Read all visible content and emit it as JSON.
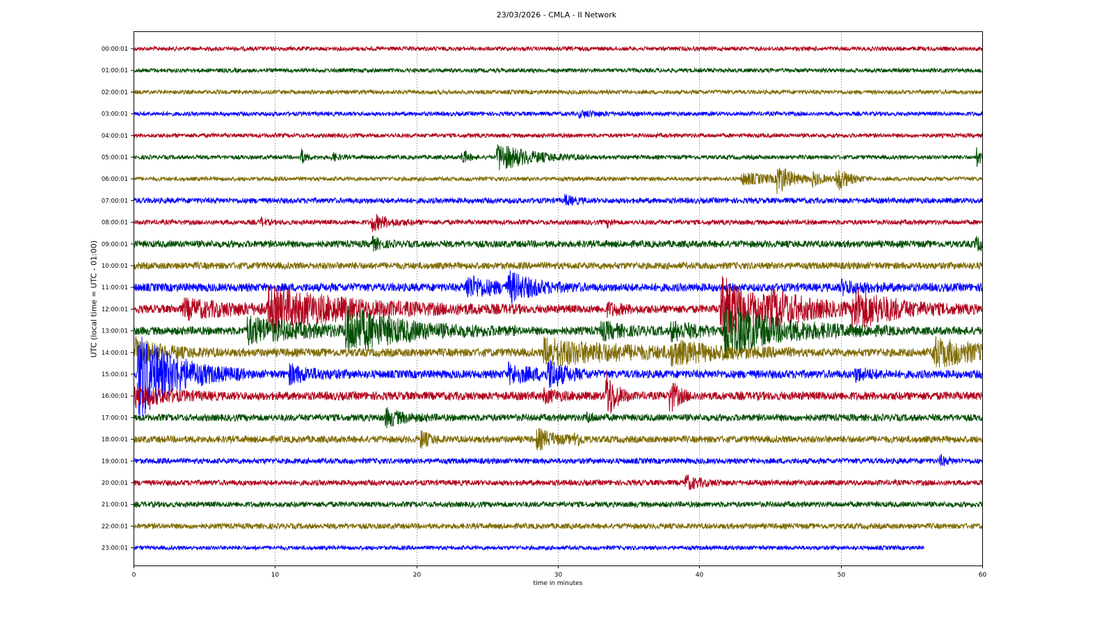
{
  "chart_data": {
    "type": "line",
    "title": "23/03/2026 - CMLA - II Network",
    "xlabel": "time in minutes",
    "ylabel": "UTC (local time = UTC - 01:00)",
    "xlim": [
      0,
      60
    ],
    "xticks": [
      0,
      10,
      20,
      30,
      40,
      50,
      60
    ],
    "grid": "vertical dotted",
    "colors": [
      "#b0001a",
      "#004d00",
      "#7f6a00",
      "#0000ff"
    ],
    "series": [
      {
        "label": "00:00:01",
        "color": "#b0001a",
        "amp": 3,
        "end": 60,
        "events": []
      },
      {
        "label": "01:00:01",
        "color": "#004d00",
        "amp": 3,
        "end": 60,
        "events": []
      },
      {
        "label": "02:00:01",
        "color": "#7f6a00",
        "amp": 3,
        "end": 60,
        "events": []
      },
      {
        "label": "03:00:01",
        "color": "#0000ff",
        "amp": 3,
        "end": 60,
        "events": [
          [
            31.5,
            4,
            1.5
          ]
        ]
      },
      {
        "label": "04:00:01",
        "color": "#b0001a",
        "amp": 3,
        "end": 60,
        "events": []
      },
      {
        "label": "05:00:01",
        "color": "#004d00",
        "amp": 3,
        "end": 60,
        "events": [
          [
            11.8,
            13,
            0.3
          ],
          [
            14,
            7,
            0.4
          ],
          [
            23.2,
            12,
            0.4
          ],
          [
            25.7,
            20,
            2.2
          ],
          [
            59.6,
            12,
            0.5
          ]
        ]
      },
      {
        "label": "06:00:01",
        "color": "#7f6a00",
        "amp": 3,
        "end": 60,
        "events": [
          [
            43,
            8,
            2.5
          ],
          [
            45.5,
            22,
            0.8
          ],
          [
            48,
            10,
            0.6
          ],
          [
            49.7,
            18,
            0.8
          ]
        ]
      },
      {
        "label": "07:00:01",
        "color": "#0000ff",
        "amp": 4,
        "end": 60,
        "events": [
          [
            30.5,
            7,
            0.6
          ]
        ]
      },
      {
        "label": "08:00:01",
        "color": "#b0001a",
        "amp": 3.5,
        "end": 60,
        "events": [
          [
            9,
            6,
            0.3
          ],
          [
            16.8,
            12,
            1.2
          ],
          [
            33.5,
            6,
            0.3
          ]
        ]
      },
      {
        "label": "09:00:01",
        "color": "#004d00",
        "amp": 5,
        "end": 60,
        "events": [
          [
            16.8,
            9,
            0.6
          ],
          [
            59.5,
            8,
            0.8
          ]
        ]
      },
      {
        "label": "10:00:01",
        "color": "#7f6a00",
        "amp": 5,
        "end": 60,
        "events": []
      },
      {
        "label": "11:00:01",
        "color": "#0000ff",
        "amp": 6,
        "end": 60,
        "events": [
          [
            23.5,
            16,
            1.8
          ],
          [
            26.5,
            18,
            1.8
          ],
          [
            50,
            8,
            1.5
          ]
        ]
      },
      {
        "label": "12:00:01",
        "color": "#b0001a",
        "amp": 6,
        "end": 60,
        "events": [
          [
            3.5,
            12,
            4
          ],
          [
            9.5,
            28,
            6
          ],
          [
            33.5,
            8,
            1
          ],
          [
            41.5,
            45,
            3
          ],
          [
            45,
            14,
            3
          ],
          [
            50.8,
            28,
            3
          ]
        ]
      },
      {
        "label": "13:00:01",
        "color": "#004d00",
        "amp": 6,
        "end": 60,
        "events": [
          [
            8,
            18,
            4
          ],
          [
            15,
            30,
            4
          ],
          [
            33,
            12,
            1.5
          ],
          [
            38,
            12,
            2
          ],
          [
            41.8,
            35,
            4
          ]
        ]
      },
      {
        "label": "14:00:01",
        "color": "#7f6a00",
        "amp": 6,
        "end": 60,
        "events": [
          [
            0.1,
            18,
            2
          ],
          [
            29,
            18,
            6
          ],
          [
            38,
            12,
            3
          ],
          [
            56.5,
            20,
            3.5
          ]
        ]
      },
      {
        "label": "15:00:01",
        "color": "#0000ff",
        "amp": 6,
        "end": 60,
        "events": [
          [
            0.3,
            65,
            2.5
          ],
          [
            11,
            12,
            1.5
          ],
          [
            26.5,
            12,
            2
          ],
          [
            29.3,
            20,
            1
          ],
          [
            51,
            8,
            1
          ]
        ]
      },
      {
        "label": "16:00:01",
        "color": "#b0001a",
        "amp": 6,
        "end": 60,
        "events": [
          [
            0,
            16,
            2
          ],
          [
            29,
            8,
            1
          ],
          [
            33.4,
            40,
            0.6
          ],
          [
            37.9,
            24,
            0.6
          ]
        ]
      },
      {
        "label": "17:00:01",
        "color": "#004d00",
        "amp": 5,
        "end": 60,
        "events": [
          [
            17.8,
            12,
            1.2
          ],
          [
            32,
            6,
            0.5
          ]
        ]
      },
      {
        "label": "18:00:01",
        "color": "#7f6a00",
        "amp": 5,
        "end": 60,
        "events": [
          [
            20.3,
            12,
            0.6
          ],
          [
            28.5,
            14,
            1.2
          ],
          [
            31.2,
            12,
            0.3
          ]
        ]
      },
      {
        "label": "19:00:01",
        "color": "#0000ff",
        "amp": 4,
        "end": 60,
        "events": [
          [
            57,
            7,
            0.5
          ]
        ]
      },
      {
        "label": "20:00:01",
        "color": "#b0001a",
        "amp": 4,
        "end": 60,
        "events": [
          [
            39,
            10,
            1
          ]
        ]
      },
      {
        "label": "21:00:01",
        "color": "#004d00",
        "amp": 4,
        "end": 60,
        "events": []
      },
      {
        "label": "22:00:01",
        "color": "#7f6a00",
        "amp": 4,
        "end": 60,
        "events": []
      },
      {
        "label": "23:00:01",
        "color": "#0000ff",
        "amp": 3,
        "end": 55.9,
        "events": []
      }
    ]
  }
}
